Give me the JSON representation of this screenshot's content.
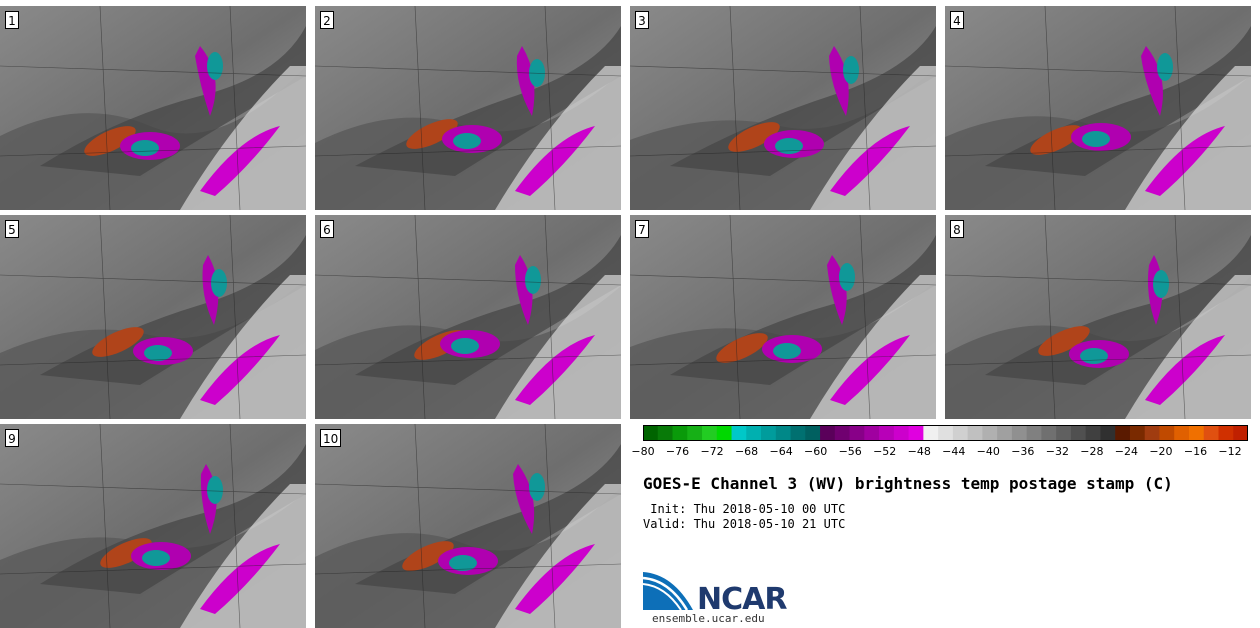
{
  "panels": [
    {
      "label": "1"
    },
    {
      "label": "2"
    },
    {
      "label": "3"
    },
    {
      "label": "4"
    },
    {
      "label": "5"
    },
    {
      "label": "6"
    },
    {
      "label": "7"
    },
    {
      "label": "8"
    },
    {
      "label": "9"
    },
    {
      "label": "10"
    }
  ],
  "colorbar": {
    "ticks": [
      "−80",
      "−76",
      "−72",
      "−68",
      "−64",
      "−60",
      "−56",
      "−52",
      "−48",
      "−44",
      "−40",
      "−36",
      "−32",
      "−28",
      "−24",
      "−20",
      "−16",
      "−12"
    ],
    "colors": [
      "#006400",
      "#087a08",
      "#0a9a0a",
      "#16b016",
      "#22cc22",
      "#00d800",
      "#00c8c8",
      "#00b0b0",
      "#009c9c",
      "#008888",
      "#007070",
      "#006060",
      "#5a005a",
      "#700070",
      "#880088",
      "#a000a0",
      "#b800b8",
      "#cc00cc",
      "#e000e0",
      "#f0f0f0",
      "#e0e0e0",
      "#d0d0d0",
      "#c0c0c0",
      "#b0b0b0",
      "#a0a0a0",
      "#909090",
      "#808080",
      "#707070",
      "#606060",
      "#505050",
      "#404040",
      "#303030",
      "#5a1a00",
      "#7a2a00",
      "#a03c10",
      "#c04a00",
      "#e06000",
      "#f07000",
      "#e05010",
      "#d03000",
      "#c02000"
    ]
  },
  "title": "GOES-E Channel 3 (WV) brightness temp postage stamp (C)",
  "init": " Init: Thu 2018-05-10 00 UTC",
  "valid": "Valid: Thu 2018-05-10 21 UTC",
  "logo": {
    "name": "NCAR",
    "url": "ensemble.ucar.edu"
  }
}
